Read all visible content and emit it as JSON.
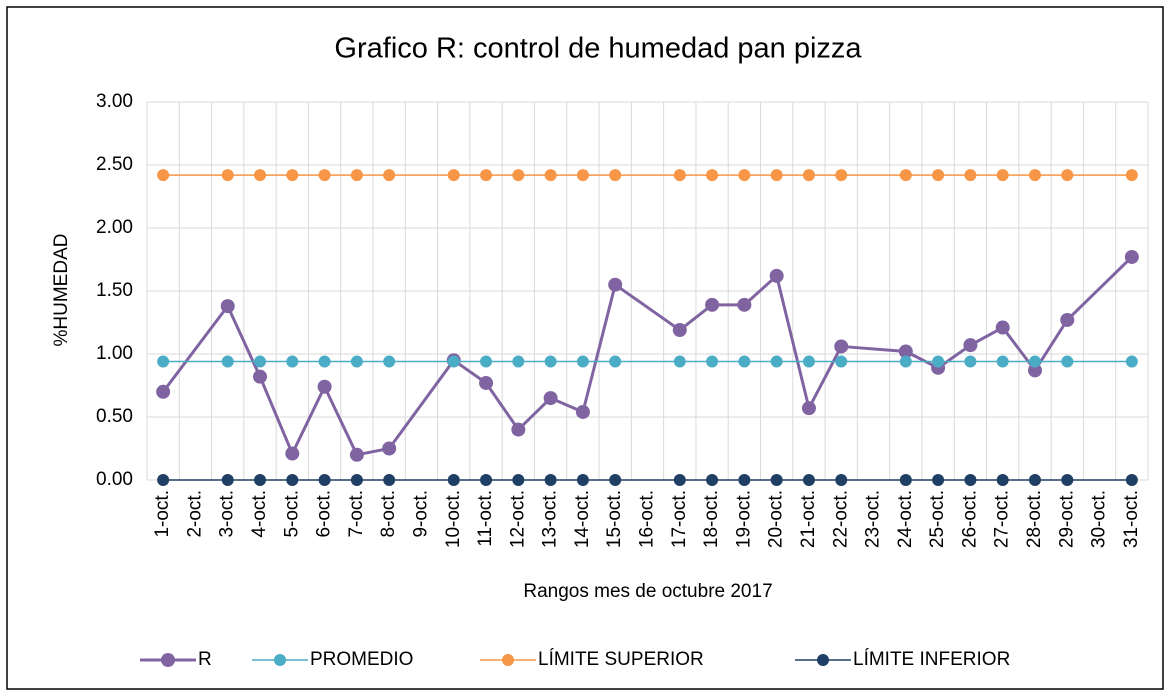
{
  "chart_data": {
    "type": "line",
    "title": "Grafico R: control de humedad pan pizza",
    "x_label": "Rangos mes de octubre 2017",
    "y_label": "%HUMEDAD",
    "categories": [
      "1-oct.",
      "2-oct.",
      "3-oct.",
      "4-oct.",
      "5-oct.",
      "6-oct.",
      "7-oct.",
      "8-oct.",
      "9-oct.",
      "10-oct.",
      "11-oct.",
      "12-oct.",
      "13-oct.",
      "14-oct.",
      "15-oct.",
      "16-oct.",
      "17-oct.",
      "18-oct.",
      "19-oct.",
      "20-oct.",
      "21-oct.",
      "22-oct.",
      "23-oct.",
      "24-oct.",
      "25-oct.",
      "26-oct.",
      "27-oct.",
      "28-oct.",
      "29-oct.",
      "30-oct.",
      "31-oct."
    ],
    "series": [
      {
        "name": "R",
        "color": "#8064a2",
        "values": [
          0.7,
          null,
          1.38,
          0.82,
          0.21,
          0.74,
          0.2,
          0.25,
          null,
          0.95,
          0.77,
          0.4,
          0.65,
          0.54,
          1.55,
          null,
          1.19,
          1.39,
          1.39,
          1.62,
          0.57,
          1.06,
          null,
          1.02,
          0.89,
          1.07,
          1.21,
          0.87,
          1.27,
          null,
          1.77
        ]
      },
      {
        "name": "PROMEDIO",
        "color": "#4bacc6",
        "values": [
          0.94,
          null,
          0.94,
          0.94,
          0.94,
          0.94,
          0.94,
          0.94,
          null,
          0.94,
          0.94,
          0.94,
          0.94,
          0.94,
          0.94,
          null,
          0.94,
          0.94,
          0.94,
          0.94,
          0.94,
          0.94,
          null,
          0.94,
          0.94,
          0.94,
          0.94,
          0.94,
          0.94,
          null,
          0.94
        ]
      },
      {
        "name": "LÍMITE SUPERIOR",
        "color": "#f79646",
        "values": [
          2.42,
          null,
          2.42,
          2.42,
          2.42,
          2.42,
          2.42,
          2.42,
          null,
          2.42,
          2.42,
          2.42,
          2.42,
          2.42,
          2.42,
          null,
          2.42,
          2.42,
          2.42,
          2.42,
          2.42,
          2.42,
          null,
          2.42,
          2.42,
          2.42,
          2.42,
          2.42,
          2.42,
          null,
          2.42
        ]
      },
      {
        "name": "LÍMITE INFERIOR",
        "color": "#1f3f64",
        "values": [
          0,
          null,
          0,
          0,
          0,
          0,
          0,
          0,
          null,
          0,
          0,
          0,
          0,
          0,
          0,
          null,
          0,
          0,
          0,
          0,
          0,
          0,
          null,
          0,
          0,
          0,
          0,
          0,
          0,
          null,
          0
        ]
      }
    ],
    "ylim": [
      0,
      3
    ],
    "yticks": [
      {
        "value": 0,
        "label": "0.00"
      },
      {
        "value": 0.5,
        "label": "0.50"
      },
      {
        "value": 1,
        "label": "1.00"
      },
      {
        "value": 1.5,
        "label": "1.50"
      },
      {
        "value": 2,
        "label": "2.00"
      },
      {
        "value": 2.5,
        "label": "2.50"
      },
      {
        "value": 3,
        "label": "3.00"
      }
    ],
    "grid": true,
    "legend": "bottom"
  }
}
